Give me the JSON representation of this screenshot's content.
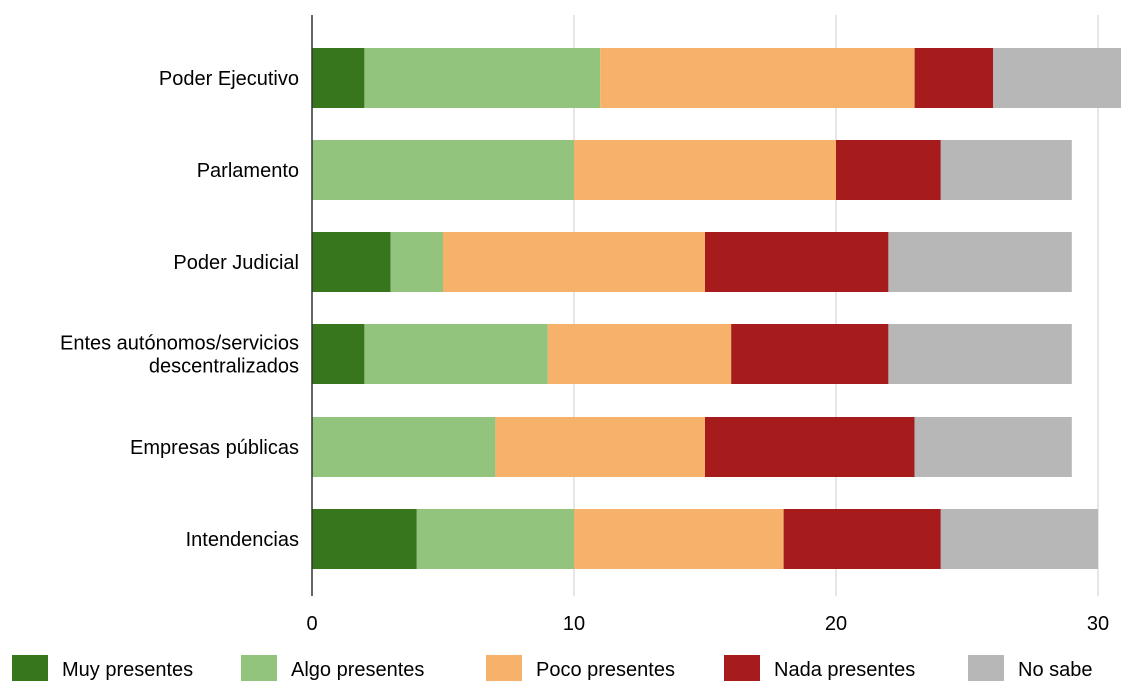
{
  "chart_data": {
    "type": "bar",
    "orientation": "horizontal",
    "stacked": true,
    "categories": [
      [
        "Poder Ejecutivo"
      ],
      [
        "Parlamento"
      ],
      [
        "Poder Judicial"
      ],
      [
        "Entes autónomos/servicios",
        "descentralizados"
      ],
      [
        "Empresas públicas"
      ],
      [
        "Intendencias"
      ]
    ],
    "series": [
      {
        "name": "Muy presentes",
        "color": "#38761d",
        "values": [
          2,
          0,
          3,
          2,
          0,
          4
        ]
      },
      {
        "name": "Algo presentes",
        "color": "#93c47d",
        "values": [
          9,
          10,
          2,
          7,
          7,
          6
        ]
      },
      {
        "name": "Poco presentes",
        "color": "#f6b26b",
        "values": [
          12,
          10,
          10,
          7,
          8,
          8
        ]
      },
      {
        "name": "Nada presentes",
        "color": "#a61c1c",
        "values": [
          3,
          4,
          7,
          6,
          8,
          6
        ]
      },
      {
        "name": "No sabe",
        "color": "#b7b7b7",
        "values": [
          5,
          5,
          7,
          7,
          6,
          6
        ]
      }
    ],
    "xlim": [
      0,
      31
    ],
    "xticks": [
      "0",
      "10",
      "20",
      "30"
    ],
    "xtick_values": [
      0,
      10,
      20,
      30
    ],
    "grid": "vertical",
    "legend_position": "bottom",
    "title": "",
    "xlabel": "",
    "ylabel": ""
  }
}
